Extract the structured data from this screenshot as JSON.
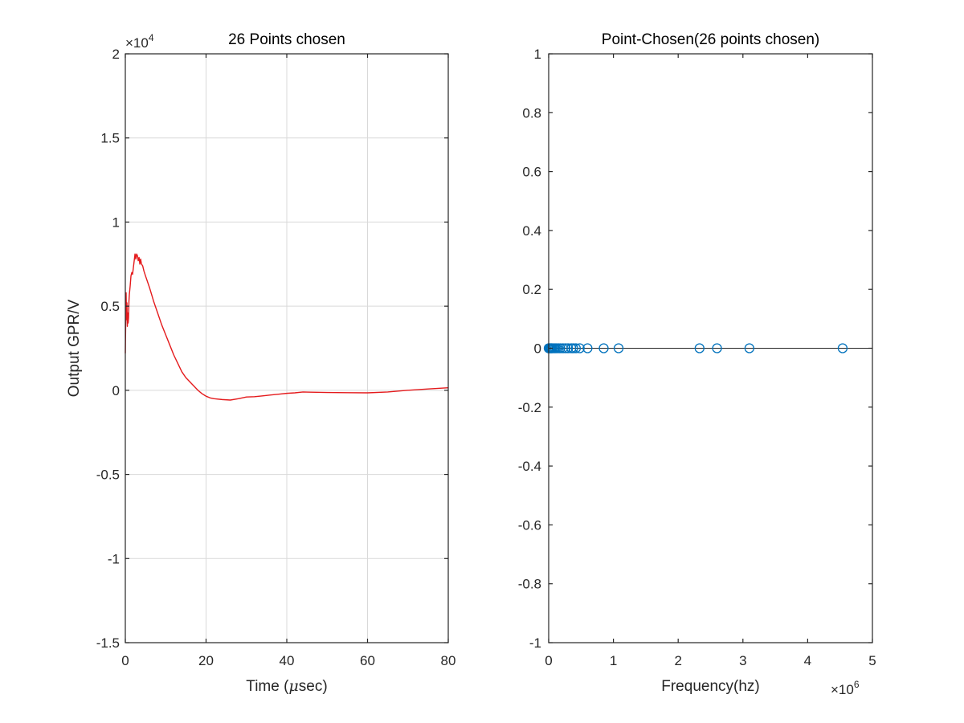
{
  "chart_data": [
    {
      "type": "line",
      "title": "26 Points chosen",
      "xlabel_prefix": "Time (",
      "xlabel_mu": "μ",
      "xlabel_suffix": "sec)",
      "ylabel": "Output GPR/V",
      "xlim": [
        0,
        80
      ],
      "ylim": [
        -15000,
        20000
      ],
      "xticks": [
        0,
        20,
        40,
        60,
        80
      ],
      "xtick_labels": [
        "0",
        "20",
        "40",
        "60",
        "80"
      ],
      "yticks": [
        -15000,
        -10000,
        -5000,
        0,
        5000,
        10000,
        15000,
        20000
      ],
      "ytick_labels": [
        "-1.5",
        "-1",
        "-0.5",
        "0",
        "0.5",
        "1",
        "1.5",
        "2"
      ],
      "y_exponent_base": "×10",
      "y_exponent_power": "4",
      "grid": true,
      "line_color": "#e41a1c",
      "series": [
        {
          "x": [
            0,
            0.1,
            0.2,
            0.3,
            0.4,
            0.5,
            0.6,
            0.7,
            0.8,
            0.9,
            1.0,
            1.2,
            1.4,
            1.6,
            1.8,
            2.0,
            2.2,
            2.4,
            2.6,
            2.8,
            3.0,
            3.2,
            3.4,
            3.6,
            3.8,
            4.0,
            4.3,
            4.6,
            5.0,
            6,
            7,
            8,
            9,
            10,
            11,
            12,
            13,
            14,
            15,
            16,
            17,
            18,
            19,
            20,
            21,
            22,
            24,
            26,
            28,
            30,
            32,
            34,
            36,
            38,
            40,
            42,
            44,
            46,
            50,
            55,
            60,
            65,
            70,
            75,
            80
          ],
          "y": [
            2200,
            4000,
            5800,
            4200,
            5200,
            3800,
            4600,
            4000,
            4300,
            5300,
            5700,
            6200,
            6800,
            7000,
            6900,
            7300,
            7700,
            8100,
            7800,
            8100,
            8000,
            7700,
            7900,
            7500,
            7800,
            7500,
            7400,
            7100,
            6800,
            6100,
            5300,
            4600,
            3900,
            3300,
            2700,
            2100,
            1600,
            1100,
            750,
            500,
            250,
            0,
            -200,
            -350,
            -450,
            -500,
            -550,
            -580,
            -500,
            -400,
            -380,
            -330,
            -280,
            -230,
            -180,
            -150,
            -100,
            -110,
            -130,
            -140,
            -150,
            -100,
            0,
            80,
            150
          ]
        }
      ]
    },
    {
      "type": "scatter",
      "title": "Point-Chosen(26 points chosen)",
      "xlabel": "Frequency(hz)",
      "ylabel": "",
      "xlim": [
        0,
        5000000
      ],
      "ylim": [
        -1,
        1
      ],
      "xticks": [
        0,
        1000000,
        2000000,
        3000000,
        4000000,
        5000000
      ],
      "xtick_labels": [
        "0",
        "1",
        "2",
        "3",
        "4",
        "5"
      ],
      "yticks": [
        -1,
        -0.8,
        -0.6,
        -0.4,
        -0.2,
        0,
        0.2,
        0.4,
        0.6,
        0.8,
        1
      ],
      "ytick_labels": [
        "-1",
        "-0.8",
        "-0.6",
        "-0.4",
        "-0.2",
        "0",
        "0.2",
        "0.4",
        "0.6",
        "0.8",
        "1"
      ],
      "x_exponent_base": "×10",
      "x_exponent_power": "6",
      "grid": false,
      "marker_color": "#0072bd",
      "zero_line": true,
      "series": [
        {
          "x": [
            0,
            10000,
            20000,
            30000,
            45000,
            60000,
            80000,
            100000,
            120000,
            150000,
            180000,
            220000,
            260000,
            300000,
            350000,
            380000,
            420000,
            480000,
            600000,
            850000,
            1080000,
            2330000,
            2600000,
            3100000,
            4540000,
            40000
          ],
          "y": [
            0,
            0,
            0,
            0,
            0,
            0,
            0,
            0,
            0,
            0,
            0,
            0,
            0,
            0,
            0,
            0,
            0,
            0,
            0,
            0,
            0,
            0,
            0,
            0,
            0,
            0
          ]
        }
      ]
    }
  ]
}
